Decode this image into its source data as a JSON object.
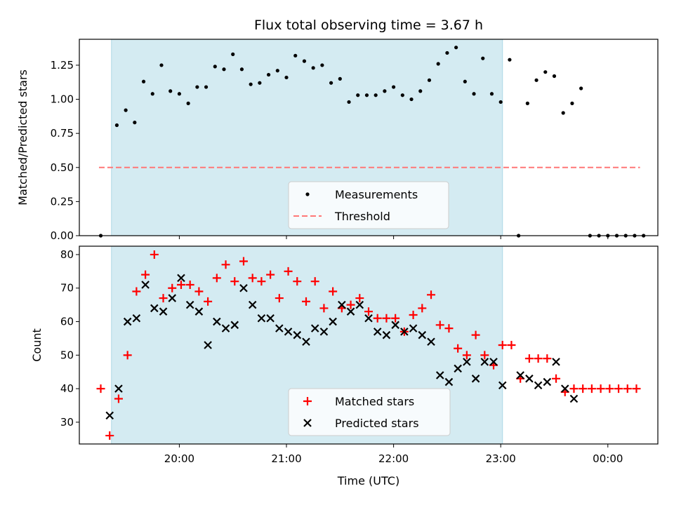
{
  "chart_data": [
    {
      "type": "scatter",
      "title": "Flux total observing time = 3.67 h",
      "xlabel": "",
      "ylabel": "Matched/Predicted stars",
      "ylim": [
        0,
        1.44
      ],
      "yticks": [
        "0.00",
        "0.25",
        "0.50",
        "0.75",
        "1.00",
        "1.25"
      ],
      "shaded_interval": [
        "19:22",
        "23:01"
      ],
      "threshold": {
        "label": "Threshold",
        "value": 0.5,
        "x_range": [
          "19:15",
          "00:18"
        ],
        "color": "#ff7777"
      },
      "legend": {
        "position": "lower-center",
        "entries": [
          "Measurements",
          "Threshold"
        ]
      },
      "series": [
        {
          "name": "Measurements",
          "color": "#000000",
          "points": [
            [
              "19:16",
              0.0
            ],
            [
              "19:25",
              0.81
            ],
            [
              "19:30",
              0.92
            ],
            [
              "19:35",
              0.83
            ],
            [
              "19:40",
              1.13
            ],
            [
              "19:45",
              1.04
            ],
            [
              "19:50",
              1.25
            ],
            [
              "19:55",
              1.06
            ],
            [
              "20:00",
              1.04
            ],
            [
              "20:05",
              0.97
            ],
            [
              "20:10",
              1.09
            ],
            [
              "20:15",
              1.09
            ],
            [
              "20:20",
              1.24
            ],
            [
              "20:25",
              1.22
            ],
            [
              "20:30",
              1.33
            ],
            [
              "20:35",
              1.22
            ],
            [
              "20:40",
              1.11
            ],
            [
              "20:45",
              1.12
            ],
            [
              "20:50",
              1.18
            ],
            [
              "20:55",
              1.21
            ],
            [
              "21:00",
              1.16
            ],
            [
              "21:05",
              1.32
            ],
            [
              "21:10",
              1.28
            ],
            [
              "21:15",
              1.23
            ],
            [
              "21:20",
              1.25
            ],
            [
              "21:25",
              1.12
            ],
            [
              "21:30",
              1.15
            ],
            [
              "21:35",
              0.98
            ],
            [
              "21:40",
              1.03
            ],
            [
              "21:45",
              1.03
            ],
            [
              "21:50",
              1.03
            ],
            [
              "21:55",
              1.06
            ],
            [
              "22:00",
              1.09
            ],
            [
              "22:05",
              1.03
            ],
            [
              "22:10",
              1.0
            ],
            [
              "22:15",
              1.06
            ],
            [
              "22:20",
              1.14
            ],
            [
              "22:25",
              1.26
            ],
            [
              "22:30",
              1.34
            ],
            [
              "22:35",
              1.38
            ],
            [
              "22:40",
              1.13
            ],
            [
              "22:45",
              1.04
            ],
            [
              "22:50",
              1.3
            ],
            [
              "22:55",
              1.04
            ],
            [
              "23:00",
              0.98
            ],
            [
              "23:05",
              1.29
            ],
            [
              "23:10",
              0.0
            ],
            [
              "23:15",
              0.97
            ],
            [
              "23:20",
              1.14
            ],
            [
              "23:25",
              1.2
            ],
            [
              "23:30",
              1.17
            ],
            [
              "23:35",
              0.9
            ],
            [
              "23:40",
              0.97
            ],
            [
              "23:45",
              1.08
            ],
            [
              "23:50",
              0.0
            ],
            [
              "23:55",
              0.0
            ],
            [
              "00:00",
              0.0
            ],
            [
              "00:05",
              0.0
            ],
            [
              "00:10",
              0.0
            ],
            [
              "00:15",
              0.0
            ],
            [
              "00:20",
              0.0
            ]
          ]
        }
      ]
    },
    {
      "type": "scatter",
      "title": "",
      "xlabel": "Time (UTC)",
      "ylabel": "Count",
      "ylim": [
        23.5,
        82.5
      ],
      "yticks": [
        "30",
        "40",
        "50",
        "60",
        "70",
        "80"
      ],
      "xticks": [
        "20:00",
        "21:00",
        "22:00",
        "23:00",
        "00:00"
      ],
      "shaded_interval": [
        "19:22",
        "23:01"
      ],
      "legend": {
        "position": "lower-center",
        "entries": [
          "Matched stars",
          "Predicted stars"
        ]
      },
      "series": [
        {
          "name": "Matched stars",
          "color": "#ff0000",
          "marker": "plus",
          "points": [
            [
              "19:16",
              40
            ],
            [
              "19:21",
              26
            ],
            [
              "19:26",
              37
            ],
            [
              "19:31",
              50
            ],
            [
              "19:36",
              69
            ],
            [
              "19:41",
              74
            ],
            [
              "19:46",
              80
            ],
            [
              "19:51",
              67
            ],
            [
              "19:56",
              70
            ],
            [
              "20:01",
              71
            ],
            [
              "20:06",
              71
            ],
            [
              "20:11",
              69
            ],
            [
              "20:16",
              66
            ],
            [
              "20:21",
              73
            ],
            [
              "20:26",
              77
            ],
            [
              "20:31",
              72
            ],
            [
              "20:36",
              78
            ],
            [
              "20:41",
              73
            ],
            [
              "20:46",
              72
            ],
            [
              "20:51",
              74
            ],
            [
              "20:56",
              67
            ],
            [
              "21:01",
              75
            ],
            [
              "21:06",
              72
            ],
            [
              "21:11",
              66
            ],
            [
              "21:16",
              72
            ],
            [
              "21:21",
              64
            ],
            [
              "21:26",
              69
            ],
            [
              "21:31",
              64
            ],
            [
              "21:36",
              65
            ],
            [
              "21:41",
              67
            ],
            [
              "21:46",
              63
            ],
            [
              "21:51",
              61
            ],
            [
              "21:56",
              61
            ],
            [
              "22:01",
              61
            ],
            [
              "22:06",
              57
            ],
            [
              "22:11",
              62
            ],
            [
              "22:16",
              64
            ],
            [
              "22:21",
              68
            ],
            [
              "22:26",
              59
            ],
            [
              "22:31",
              58
            ],
            [
              "22:36",
              52
            ],
            [
              "22:41",
              50
            ],
            [
              "22:46",
              56
            ],
            [
              "22:51",
              50
            ],
            [
              "22:56",
              47
            ],
            [
              "23:01",
              53
            ],
            [
              "23:06",
              53
            ],
            [
              "23:11",
              43
            ],
            [
              "23:16",
              49
            ],
            [
              "23:21",
              49
            ],
            [
              "23:26",
              49
            ],
            [
              "23:31",
              43
            ],
            [
              "23:36",
              39
            ],
            [
              "23:41",
              40
            ],
            [
              "23:46",
              40
            ],
            [
              "23:51",
              40
            ],
            [
              "23:56",
              40
            ],
            [
              "00:01",
              40
            ],
            [
              "00:06",
              40
            ],
            [
              "00:11",
              40
            ],
            [
              "00:16",
              40
            ]
          ]
        },
        {
          "name": "Predicted stars",
          "color": "#000000",
          "marker": "cross",
          "points": [
            [
              "19:21",
              32
            ],
            [
              "19:26",
              40
            ],
            [
              "19:31",
              60
            ],
            [
              "19:36",
              61
            ],
            [
              "19:41",
              71
            ],
            [
              "19:46",
              64
            ],
            [
              "19:51",
              63
            ],
            [
              "19:56",
              67
            ],
            [
              "20:01",
              73
            ],
            [
              "20:06",
              65
            ],
            [
              "20:11",
              63
            ],
            [
              "20:16",
              53
            ],
            [
              "20:21",
              60
            ],
            [
              "20:26",
              58
            ],
            [
              "20:31",
              59
            ],
            [
              "20:36",
              70
            ],
            [
              "20:41",
              65
            ],
            [
              "20:46",
              61
            ],
            [
              "20:51",
              61
            ],
            [
              "20:56",
              58
            ],
            [
              "21:01",
              57
            ],
            [
              "21:06",
              56
            ],
            [
              "21:11",
              54
            ],
            [
              "21:16",
              58
            ],
            [
              "21:21",
              57
            ],
            [
              "21:26",
              60
            ],
            [
              "21:31",
              65
            ],
            [
              "21:36",
              63
            ],
            [
              "21:41",
              65
            ],
            [
              "21:46",
              61
            ],
            [
              "21:51",
              57
            ],
            [
              "21:56",
              56
            ],
            [
              "22:01",
              59
            ],
            [
              "22:06",
              57
            ],
            [
              "22:11",
              58
            ],
            [
              "22:16",
              56
            ],
            [
              "22:21",
              54
            ],
            [
              "22:26",
              44
            ],
            [
              "22:31",
              42
            ],
            [
              "22:36",
              46
            ],
            [
              "22:41",
              48
            ],
            [
              "22:46",
              43
            ],
            [
              "22:51",
              48
            ],
            [
              "22:56",
              48
            ],
            [
              "23:01",
              41
            ],
            [
              "23:11",
              44
            ],
            [
              "23:16",
              43
            ],
            [
              "23:21",
              41
            ],
            [
              "23:26",
              42
            ],
            [
              "23:31",
              48
            ],
            [
              "23:36",
              40
            ],
            [
              "23:41",
              37
            ]
          ]
        }
      ]
    }
  ]
}
